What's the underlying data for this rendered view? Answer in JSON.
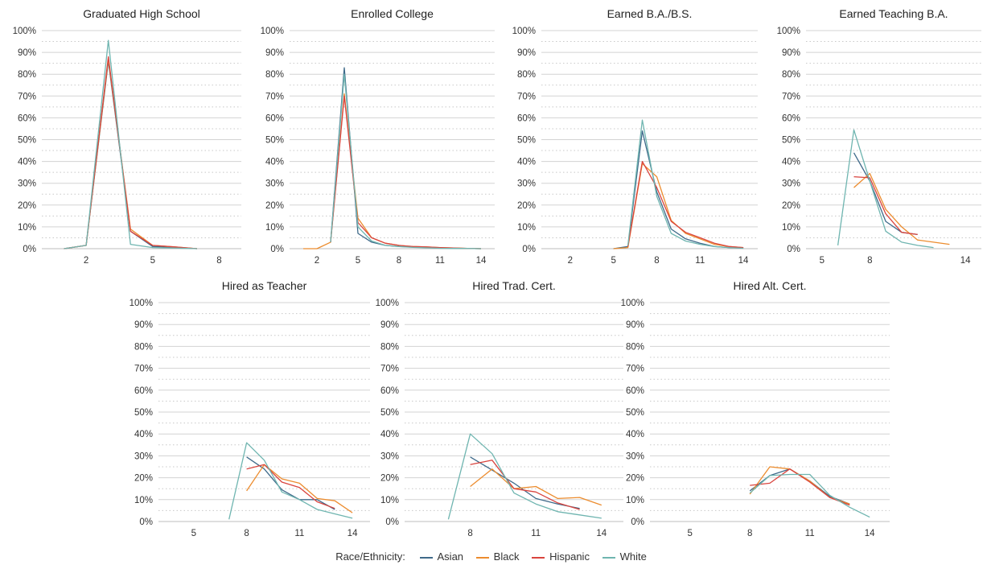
{
  "chart_data": [
    {
      "type": "line",
      "title": "Graduated High School",
      "x_ticks": [
        2,
        5,
        8
      ],
      "xlim": [
        0,
        9
      ],
      "ylim": [
        0,
        100
      ],
      "y_ticks": [
        "0%",
        "10%",
        "20%",
        "30%",
        "40%",
        "50%",
        "60%",
        "70%",
        "80%",
        "90%",
        "100%"
      ],
      "series": [
        {
          "name": "Asian",
          "points": [
            [
              1,
              0
            ],
            [
              2,
              1.5
            ],
            [
              3,
              86
            ],
            [
              4,
              8
            ],
            [
              5,
              1
            ],
            [
              6,
              0.6
            ],
            [
              7,
              0
            ]
          ]
        },
        {
          "name": "Black",
          "points": [
            [
              1,
              0
            ],
            [
              2,
              1.5
            ],
            [
              3,
              87
            ],
            [
              4,
              9
            ],
            [
              5,
              1.5
            ],
            [
              6,
              0.8
            ],
            [
              7,
              0
            ]
          ]
        },
        {
          "name": "Hispanic",
          "points": [
            [
              1,
              0
            ],
            [
              2,
              1.5
            ],
            [
              3,
              88
            ],
            [
              4,
              8
            ],
            [
              5,
              1.5
            ],
            [
              6,
              0.8
            ],
            [
              7,
              0
            ]
          ]
        },
        {
          "name": "White",
          "points": [
            [
              1,
              0
            ],
            [
              2,
              1.5
            ],
            [
              3,
              95.5
            ],
            [
              4,
              2
            ],
            [
              5,
              0.5
            ],
            [
              6,
              0.3
            ],
            [
              7,
              0
            ]
          ]
        }
      ]
    },
    {
      "type": "line",
      "title": "Enrolled College",
      "x_ticks": [
        2,
        5,
        8,
        11,
        14
      ],
      "xlim": [
        0,
        15
      ],
      "ylim": [
        0,
        100
      ],
      "y_ticks": [
        "0%",
        "10%",
        "20%",
        "30%",
        "40%",
        "50%",
        "60%",
        "70%",
        "80%",
        "90%",
        "100%"
      ],
      "series": [
        {
          "name": "Asian",
          "points": [
            [
              3,
              3
            ],
            [
              4,
              83
            ],
            [
              5,
              7
            ],
            [
              6,
              3
            ],
            [
              7,
              1.5
            ],
            [
              8,
              1
            ],
            [
              9,
              0.8
            ],
            [
              10,
              0.5
            ],
            [
              11,
              0.3
            ],
            [
              12,
              0.2
            ],
            [
              13,
              0.1
            ],
            [
              14,
              0
            ]
          ]
        },
        {
          "name": "Black",
          "points": [
            [
              1,
              0
            ],
            [
              2,
              0
            ],
            [
              3,
              3
            ],
            [
              4,
              71
            ],
            [
              5,
              14
            ],
            [
              6,
              5
            ],
            [
              7,
              2.5
            ],
            [
              8,
              1.5
            ],
            [
              9,
              1
            ],
            [
              10,
              0.8
            ],
            [
              11,
              0.5
            ],
            [
              12,
              0.3
            ],
            [
              13,
              0.1
            ],
            [
              14,
              0
            ]
          ]
        },
        {
          "name": "Hispanic",
          "points": [
            [
              3,
              3
            ],
            [
              4,
              70
            ],
            [
              5,
              12
            ],
            [
              6,
              5
            ],
            [
              7,
              2.5
            ],
            [
              8,
              1.5
            ],
            [
              9,
              1
            ],
            [
              10,
              0.8
            ],
            [
              11,
              0.5
            ],
            [
              12,
              0.3
            ],
            [
              13,
              0.1
            ],
            [
              14,
              0
            ]
          ]
        },
        {
          "name": "White",
          "points": [
            [
              3,
              3
            ],
            [
              4,
              80
            ],
            [
              5,
              10
            ],
            [
              6,
              3.5
            ],
            [
              7,
              1.5
            ],
            [
              8,
              1
            ],
            [
              9,
              0.6
            ],
            [
              10,
              0.4
            ],
            [
              11,
              0.2
            ],
            [
              12,
              0.1
            ],
            [
              13,
              0.1
            ],
            [
              14,
              0
            ]
          ]
        }
      ]
    },
    {
      "type": "line",
      "title": "Earned B.A./B.S.",
      "x_ticks": [
        2,
        5,
        8,
        11,
        14
      ],
      "xlim": [
        0,
        15
      ],
      "ylim": [
        0,
        100
      ],
      "y_ticks": [
        "0%",
        "10%",
        "20%",
        "30%",
        "40%",
        "50%",
        "60%",
        "70%",
        "80%",
        "90%",
        "100%"
      ],
      "series": [
        {
          "name": "Asian",
          "points": [
            [
              5,
              0
            ],
            [
              6,
              1
            ],
            [
              7,
              54
            ],
            [
              8,
              26
            ],
            [
              9,
              9
            ],
            [
              10,
              4.5
            ],
            [
              11,
              2.5
            ],
            [
              12,
              1
            ],
            [
              13,
              0.5
            ],
            [
              14,
              0.3
            ]
          ]
        },
        {
          "name": "Black",
          "points": [
            [
              5,
              0
            ],
            [
              6,
              0.5
            ],
            [
              7,
              39
            ],
            [
              8,
              33
            ],
            [
              9,
              13
            ],
            [
              10,
              7
            ],
            [
              11,
              4.5
            ],
            [
              12,
              2
            ],
            [
              13,
              1
            ],
            [
              14,
              0.5
            ]
          ]
        },
        {
          "name": "Hispanic",
          "points": [
            [
              6,
              1
            ],
            [
              7,
              40
            ],
            [
              8,
              28
            ],
            [
              9,
              12.5
            ],
            [
              10,
              7.5
            ],
            [
              11,
              5
            ],
            [
              12,
              2.5
            ],
            [
              13,
              1
            ],
            [
              14,
              0.5
            ]
          ]
        },
        {
          "name": "White",
          "points": [
            [
              6,
              1.5
            ],
            [
              7,
              59
            ],
            [
              8,
              24
            ],
            [
              9,
              7
            ],
            [
              10,
              3.5
            ],
            [
              11,
              2
            ],
            [
              12,
              1
            ],
            [
              13,
              0.5
            ],
            [
              14,
              0.2
            ]
          ]
        }
      ]
    },
    {
      "type": "line",
      "title": "Earned Teaching B.A.",
      "x_ticks": [
        5,
        8,
        14
      ],
      "xlim": [
        4,
        15
      ],
      "ylim": [
        0,
        100
      ],
      "y_ticks": [
        "0%",
        "10%",
        "20%",
        "30%",
        "40%",
        "50%",
        "60%",
        "70%",
        "80%",
        "90%",
        "100%"
      ],
      "series": [
        {
          "name": "Asian",
          "points": [
            [
              7,
              44
            ],
            [
              8,
              31
            ],
            [
              9,
              12.5
            ],
            [
              10,
              7.5
            ],
            [
              11,
              6.5
            ]
          ]
        },
        {
          "name": "Black",
          "points": [
            [
              7,
              28
            ],
            [
              8,
              34.5
            ],
            [
              9,
              18
            ],
            [
              10,
              10
            ],
            [
              11,
              4
            ],
            [
              12,
              3
            ],
            [
              13,
              2
            ]
          ]
        },
        {
          "name": "Hispanic",
          "points": [
            [
              7,
              33
            ],
            [
              8,
              32.5
            ],
            [
              9,
              16
            ],
            [
              10,
              7.5
            ],
            [
              11,
              6.5
            ]
          ]
        },
        {
          "name": "White",
          "points": [
            [
              6,
              1.5
            ],
            [
              7,
              54.5
            ],
            [
              8,
              31
            ],
            [
              9,
              8
            ],
            [
              10,
              3
            ],
            [
              11,
              1.5
            ],
            [
              12,
              0.5
            ]
          ]
        }
      ]
    },
    {
      "type": "line",
      "title": "Hired as Teacher",
      "x_ticks": [
        5,
        8,
        11,
        14
      ],
      "xlim": [
        3,
        15
      ],
      "ylim": [
        0,
        100
      ],
      "y_ticks": [
        "0%",
        "10%",
        "20%",
        "30%",
        "40%",
        "50%",
        "60%",
        "70%",
        "80%",
        "90%",
        "100%"
      ],
      "series": [
        {
          "name": "Asian",
          "points": [
            [
              8,
              29.5
            ],
            [
              9,
              24
            ],
            [
              10,
              14.5
            ],
            [
              11,
              10
            ],
            [
              12,
              10
            ],
            [
              13,
              5.5
            ]
          ]
        },
        {
          "name": "Black",
          "points": [
            [
              8,
              14
            ],
            [
              9,
              26
            ],
            [
              10,
              19.5
            ],
            [
              11,
              17.5
            ],
            [
              12,
              10.5
            ],
            [
              13,
              9.5
            ],
            [
              14,
              4
            ]
          ]
        },
        {
          "name": "Hispanic",
          "points": [
            [
              8,
              24
            ],
            [
              9,
              26
            ],
            [
              10,
              18
            ],
            [
              11,
              15.5
            ],
            [
              12,
              9
            ],
            [
              13,
              6
            ]
          ]
        },
        {
          "name": "White",
          "points": [
            [
              7,
              1
            ],
            [
              8,
              36
            ],
            [
              9,
              28
            ],
            [
              10,
              13.5
            ],
            [
              11,
              10
            ],
            [
              12,
              5.5
            ],
            [
              13,
              3.5
            ],
            [
              14,
              1.5
            ]
          ]
        }
      ]
    },
    {
      "type": "line",
      "title": "Hired Trad. Cert.",
      "x_ticks": [
        8,
        11,
        14
      ],
      "xlim": [
        5,
        15
      ],
      "ylim": [
        0,
        100
      ],
      "y_ticks": [
        "0%",
        "10%",
        "20%",
        "30%",
        "40%",
        "50%",
        "60%",
        "70%",
        "80%",
        "90%",
        "100%"
      ],
      "series": [
        {
          "name": "Asian",
          "points": [
            [
              8,
              29.5
            ],
            [
              9,
              23.5
            ],
            [
              10,
              17.5
            ],
            [
              11,
              10.5
            ],
            [
              12,
              8
            ],
            [
              13,
              6
            ]
          ]
        },
        {
          "name": "Black",
          "points": [
            [
              8,
              16
            ],
            [
              9,
              24
            ],
            [
              10,
              15
            ],
            [
              11,
              16
            ],
            [
              12,
              10.5
            ],
            [
              13,
              11
            ],
            [
              14,
              7.5
            ]
          ]
        },
        {
          "name": "Hispanic",
          "points": [
            [
              8,
              26
            ],
            [
              9,
              28
            ],
            [
              10,
              15
            ],
            [
              11,
              13.5
            ],
            [
              12,
              8.5
            ],
            [
              13,
              5.5
            ]
          ]
        },
        {
          "name": "White",
          "points": [
            [
              7,
              1
            ],
            [
              8,
              40
            ],
            [
              9,
              31
            ],
            [
              10,
              13
            ],
            [
              11,
              8
            ],
            [
              12,
              4.5
            ],
            [
              13,
              3
            ],
            [
              14,
              1.5
            ]
          ]
        }
      ]
    },
    {
      "type": "line",
      "title": "Hired Alt. Cert.",
      "x_ticks": [
        5,
        8,
        11,
        14
      ],
      "xlim": [
        3,
        15
      ],
      "ylim": [
        0,
        100
      ],
      "y_ticks": [
        "0%",
        "10%",
        "20%",
        "30%",
        "40%",
        "50%",
        "60%",
        "70%",
        "80%",
        "90%",
        "100%"
      ],
      "series": [
        {
          "name": "Asian",
          "points": [
            [
              8,
              14
            ],
            [
              9,
              21
            ],
            [
              10,
              24
            ],
            [
              11,
              18.5
            ],
            [
              12,
              11.5
            ],
            [
              13,
              8
            ]
          ]
        },
        {
          "name": "Black",
          "points": [
            [
              8,
              12.5
            ],
            [
              9,
              25
            ],
            [
              10,
              24
            ],
            [
              11,
              18.5
            ],
            [
              12,
              11
            ],
            [
              13,
              8
            ]
          ]
        },
        {
          "name": "Hispanic",
          "points": [
            [
              8,
              16.5
            ],
            [
              9,
              17.5
            ],
            [
              10,
              24
            ],
            [
              11,
              18
            ],
            [
              12,
              11
            ],
            [
              13,
              7.5
            ]
          ]
        },
        {
          "name": "White",
          "points": [
            [
              8,
              13
            ],
            [
              9,
              21
            ],
            [
              10,
              21.5
            ],
            [
              11,
              21.5
            ],
            [
              12,
              12
            ],
            [
              13,
              6.5
            ],
            [
              14,
              2
            ]
          ]
        }
      ]
    }
  ],
  "legend": {
    "title": "Race/Ethnicity:",
    "placement": "bottom-center",
    "items": [
      {
        "label": "Asian",
        "color": "#3f6a8a"
      },
      {
        "label": "Black",
        "color": "#ec8c2e"
      },
      {
        "label": "Hispanic",
        "color": "#d9443e"
      },
      {
        "label": "White",
        "color": "#6fb5b0"
      }
    ]
  }
}
